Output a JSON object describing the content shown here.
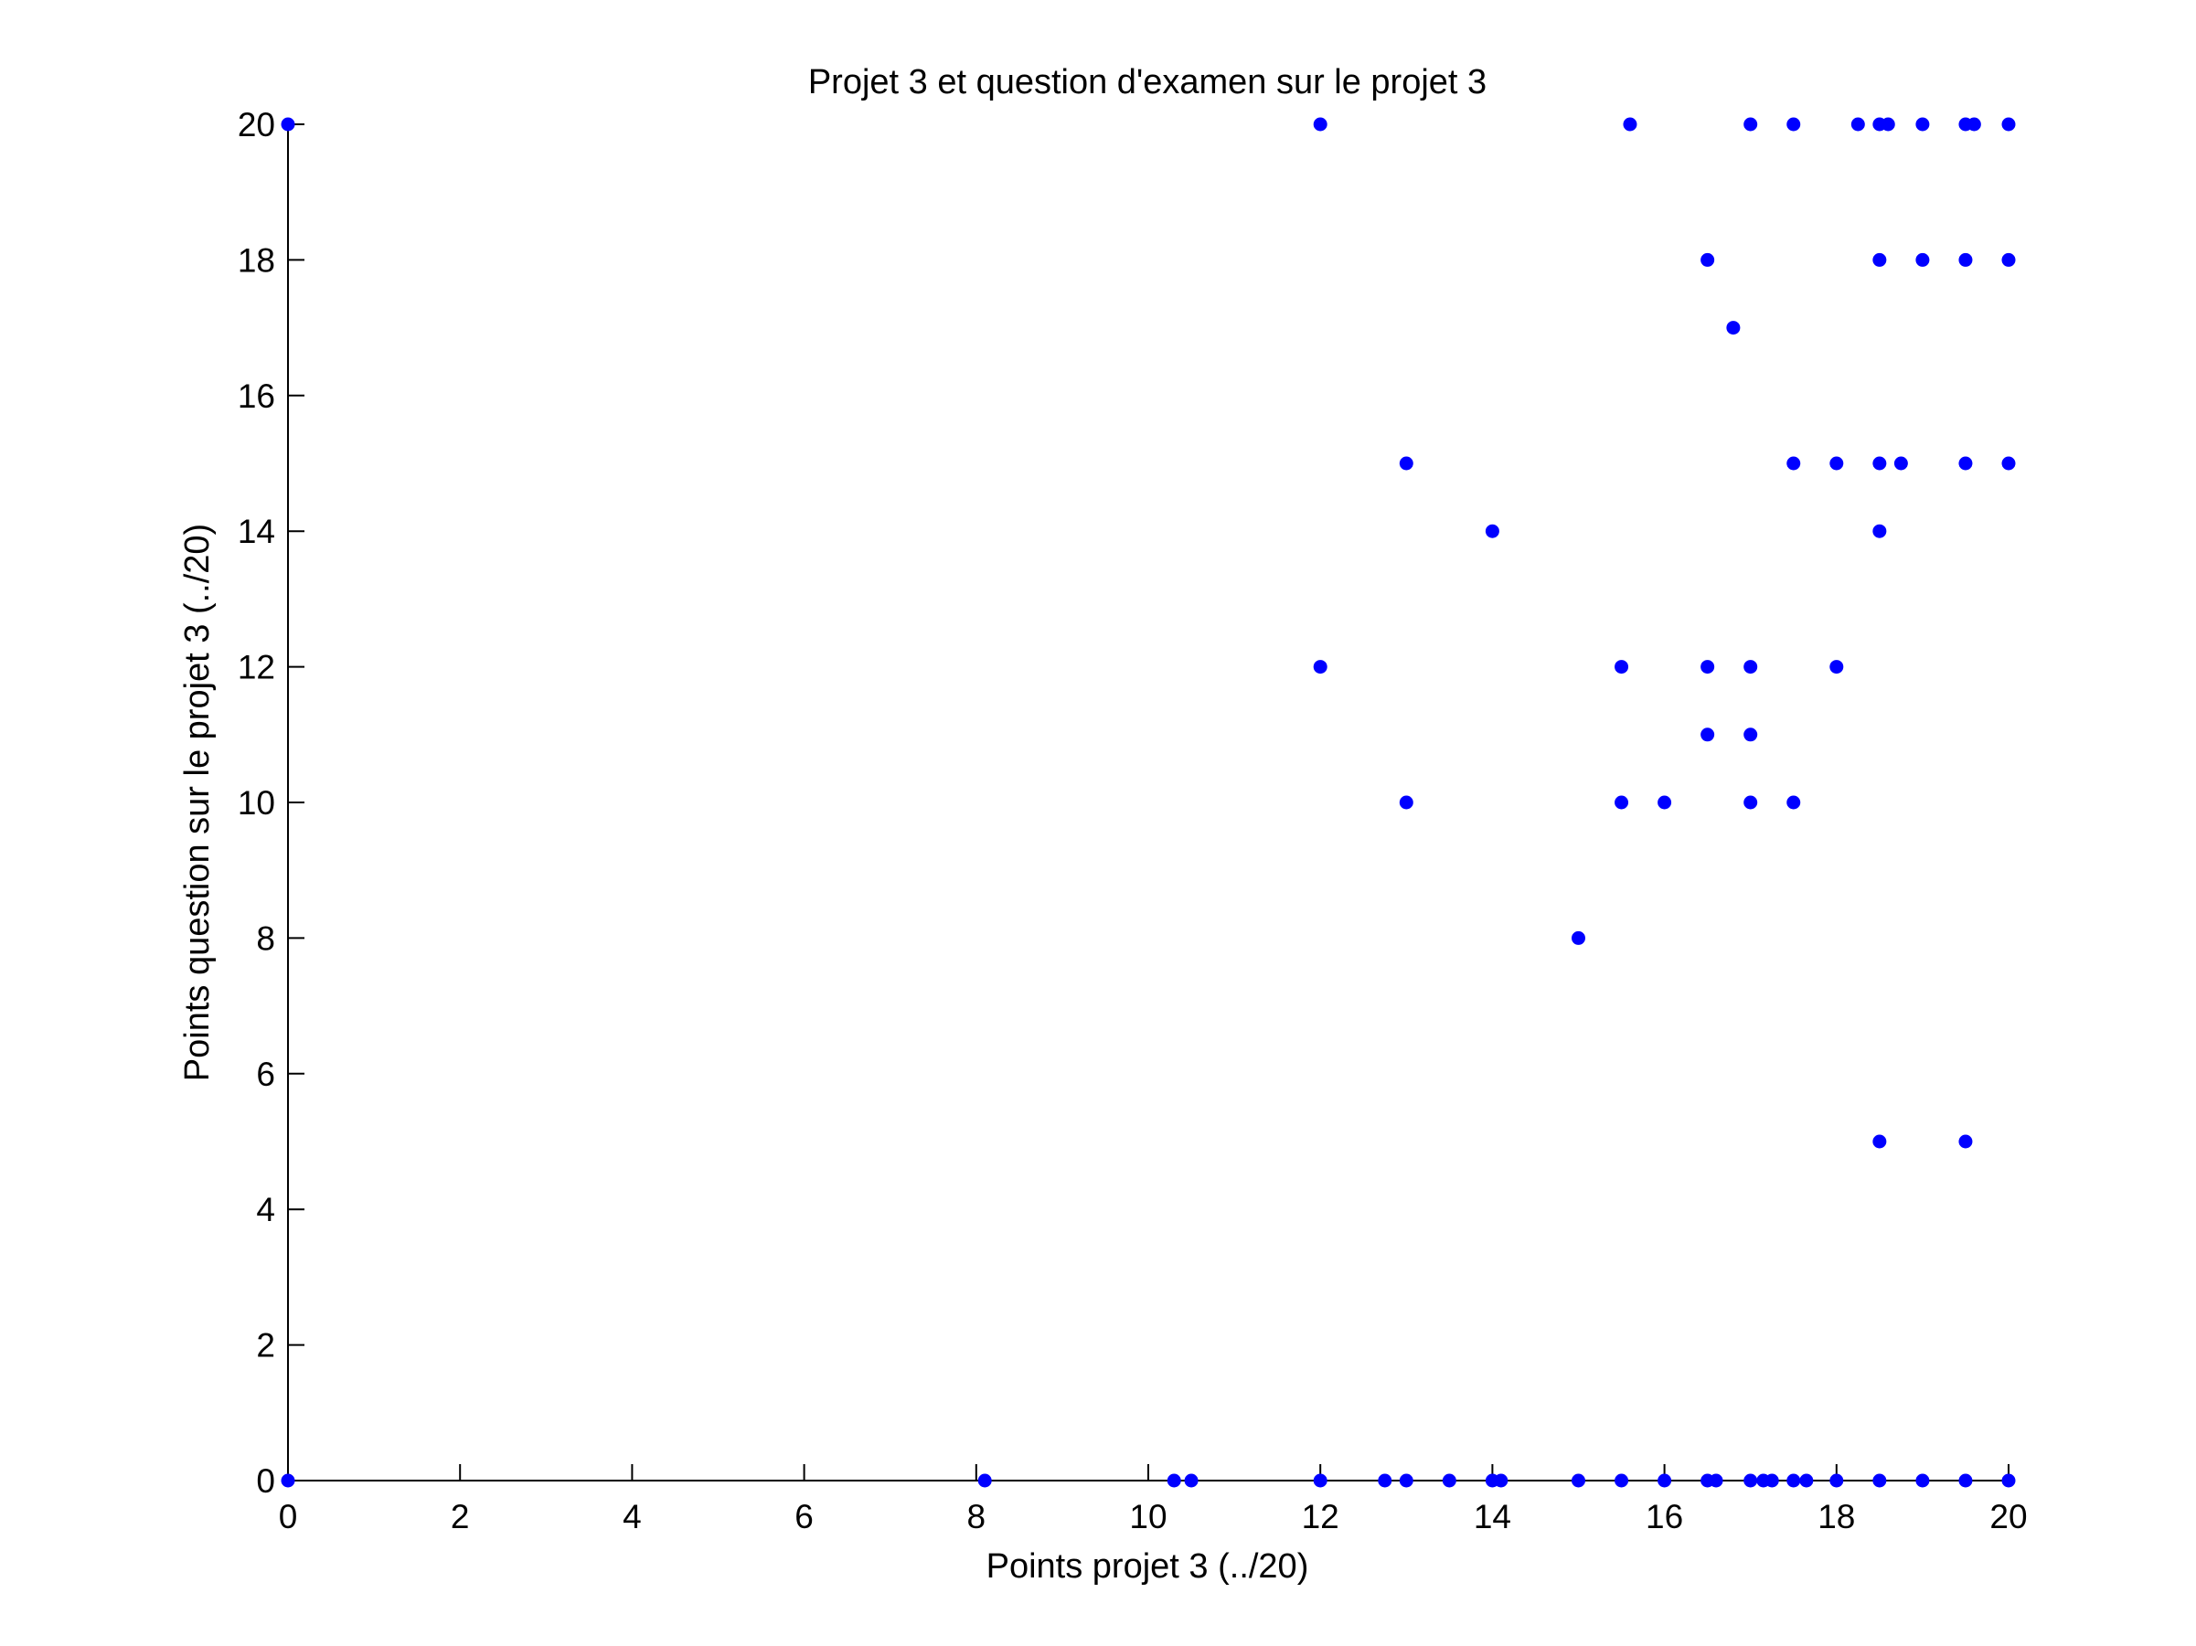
{
  "chart_data": {
    "type": "scatter",
    "title": "Projet 3 et question d'examen sur le projet 3",
    "xlabel": "Points projet 3 (../20)",
    "ylabel": "Points question sur le projet 3 (../20)",
    "xlim": [
      0,
      20
    ],
    "ylim": [
      0,
      20
    ],
    "xticks": [
      0,
      2,
      4,
      6,
      8,
      10,
      12,
      14,
      16,
      18,
      20
    ],
    "yticks": [
      0,
      2,
      4,
      6,
      8,
      10,
      12,
      14,
      16,
      18,
      20
    ],
    "grid": false,
    "marker_color": "#0000ff",
    "series": [
      {
        "points": [
          [
            0,
            20
          ],
          [
            12,
            20
          ],
          [
            15.6,
            20
          ],
          [
            17,
            20
          ],
          [
            17.5,
            20
          ],
          [
            18.25,
            20
          ],
          [
            18.5,
            20
          ],
          [
            18.6,
            20
          ],
          [
            19,
            20
          ],
          [
            19.5,
            20
          ],
          [
            19.6,
            20
          ],
          [
            20,
            20
          ],
          [
            16.5,
            18
          ],
          [
            18.5,
            18
          ],
          [
            19,
            18
          ],
          [
            19.5,
            18
          ],
          [
            20,
            18
          ],
          [
            16.8,
            17
          ],
          [
            13,
            15
          ],
          [
            17.5,
            15
          ],
          [
            18,
            15
          ],
          [
            18.5,
            15
          ],
          [
            18.75,
            15
          ],
          [
            19.5,
            15
          ],
          [
            20,
            15
          ],
          [
            14,
            14
          ],
          [
            18.5,
            14
          ],
          [
            12,
            12
          ],
          [
            15.5,
            12
          ],
          [
            16.5,
            12
          ],
          [
            17,
            12
          ],
          [
            18,
            12
          ],
          [
            16.5,
            11
          ],
          [
            17,
            11
          ],
          [
            13,
            10
          ],
          [
            15.5,
            10
          ],
          [
            16,
            10
          ],
          [
            17,
            10
          ],
          [
            17.5,
            10
          ],
          [
            15,
            8
          ],
          [
            18.5,
            5
          ],
          [
            19.5,
            5
          ],
          [
            0,
            0
          ],
          [
            8.1,
            0
          ],
          [
            10.3,
            0
          ],
          [
            10.5,
            0
          ],
          [
            12,
            0
          ],
          [
            12.75,
            0
          ],
          [
            13,
            0
          ],
          [
            13.5,
            0
          ],
          [
            14,
            0
          ],
          [
            14.1,
            0
          ],
          [
            15,
            0
          ],
          [
            15.5,
            0
          ],
          [
            16,
            0
          ],
          [
            16.5,
            0
          ],
          [
            16.6,
            0
          ],
          [
            17,
            0
          ],
          [
            17.15,
            0
          ],
          [
            17.25,
            0
          ],
          [
            17.5,
            0
          ],
          [
            17.65,
            0
          ],
          [
            18,
            0
          ],
          [
            18.5,
            0
          ],
          [
            19,
            0
          ],
          [
            19.5,
            0
          ],
          [
            20,
            0
          ]
        ]
      }
    ]
  }
}
